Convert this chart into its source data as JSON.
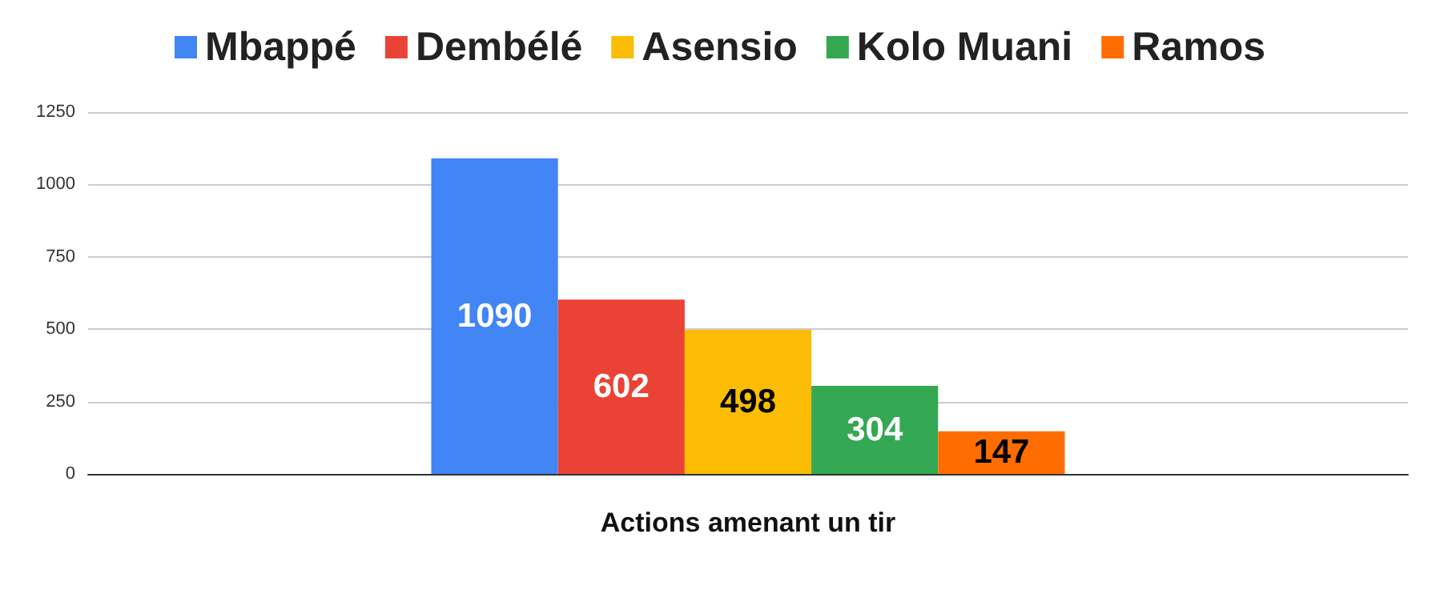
{
  "chart_data": {
    "type": "bar",
    "categories": [
      "Actions amenant un tir"
    ],
    "series": [
      {
        "name": "Mbappé",
        "color": "#4285f4",
        "values": [
          1090
        ]
      },
      {
        "name": "Dembélé",
        "color": "#ea4335",
        "values": [
          602
        ]
      },
      {
        "name": "Asensio",
        "color": "#fbbc04",
        "values": [
          498
        ]
      },
      {
        "name": "Kolo Muani",
        "color": "#34a853",
        "values": [
          304
        ]
      },
      {
        "name": "Ramos",
        "color": "#ff6d01",
        "values": [
          147
        ]
      }
    ],
    "ylim": [
      0,
      1250
    ],
    "yticks": [
      0,
      250,
      500,
      750,
      1000,
      1250
    ],
    "grid": "y",
    "legend": "top",
    "data_labels": true
  }
}
